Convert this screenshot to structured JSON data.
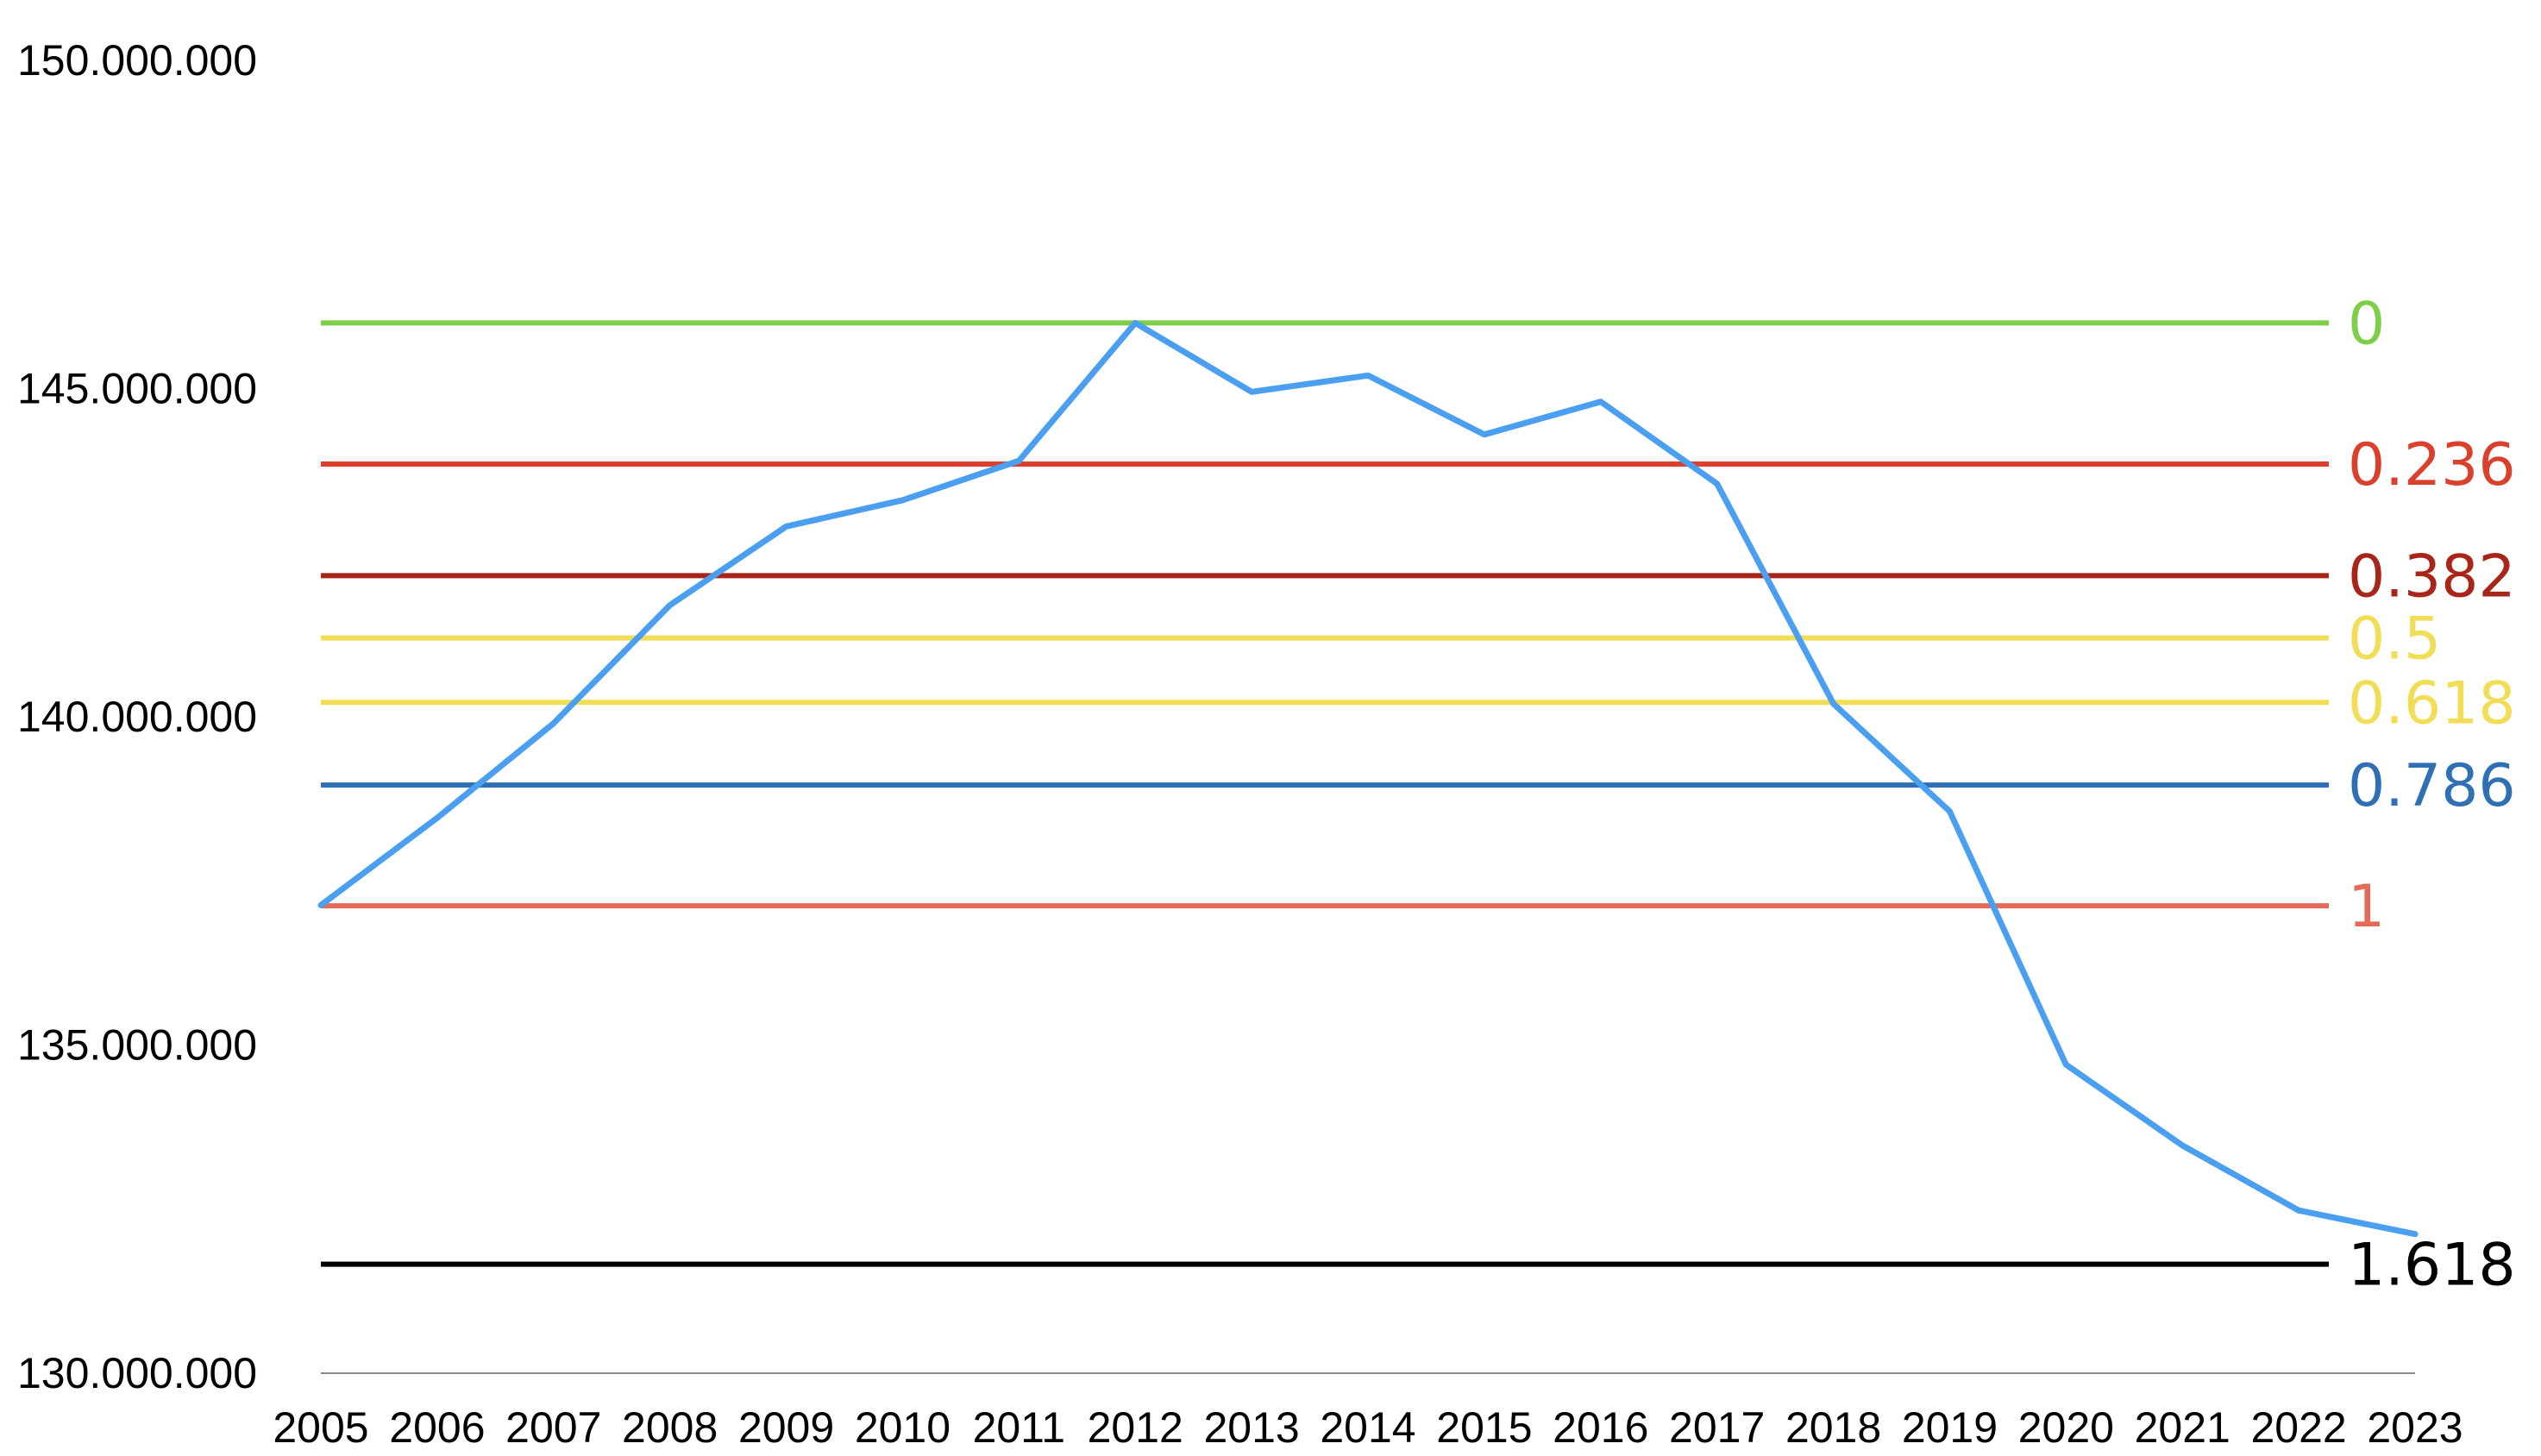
{
  "chart_data": {
    "type": "line",
    "title": "",
    "xlabel": "",
    "ylabel": "",
    "x": [
      "2005",
      "2006",
      "2007",
      "2008",
      "2009",
      "2010",
      "2011",
      "2012",
      "2013",
      "2014",
      "2015",
      "2016",
      "2017",
      "2018",
      "2019",
      "2020",
      "2021",
      "2022",
      "2023"
    ],
    "series": [
      {
        "color": "#4a9ff0",
        "values": [
          137130000,
          138460000,
          139900000,
          141700000,
          142900000,
          143300000,
          143900000,
          146000000,
          144950000,
          145200000,
          144300000,
          144800000,
          143550000,
          140200000,
          138560000,
          134700000,
          133470000,
          132480000,
          132120000
        ]
      }
    ],
    "ylim": [
      130000000,
      150000000
    ],
    "yticks": [
      {
        "value": 150000000,
        "label": "150.000.000"
      },
      {
        "value": 145000000,
        "label": "145.000.000"
      },
      {
        "value": 140000000,
        "label": "140.000.000"
      },
      {
        "value": 135000000,
        "label": "135.000.000"
      },
      {
        "value": 130000000,
        "label": "130.000.000"
      }
    ],
    "grid": false,
    "reference_lines": [
      {
        "label": "0",
        "value": 146000000,
        "color": "#7dcf4a"
      },
      {
        "label": "0.236",
        "value": 143850000,
        "color": "#d9412d"
      },
      {
        "label": "0.382",
        "value": 142150000,
        "color": "#a8251a"
      },
      {
        "label": "0.5",
        "value": 141200000,
        "color": "#f2dd56"
      },
      {
        "label": "0.618",
        "value": 140220000,
        "color": "#f2dd56"
      },
      {
        "label": "0.786",
        "value": 138960000,
        "color": "#2f6fb3"
      },
      {
        "label": "1",
        "value": 137120000,
        "color": "#e46b58"
      },
      {
        "label": "1.618",
        "value": 131660000,
        "color": "#000000"
      }
    ]
  }
}
